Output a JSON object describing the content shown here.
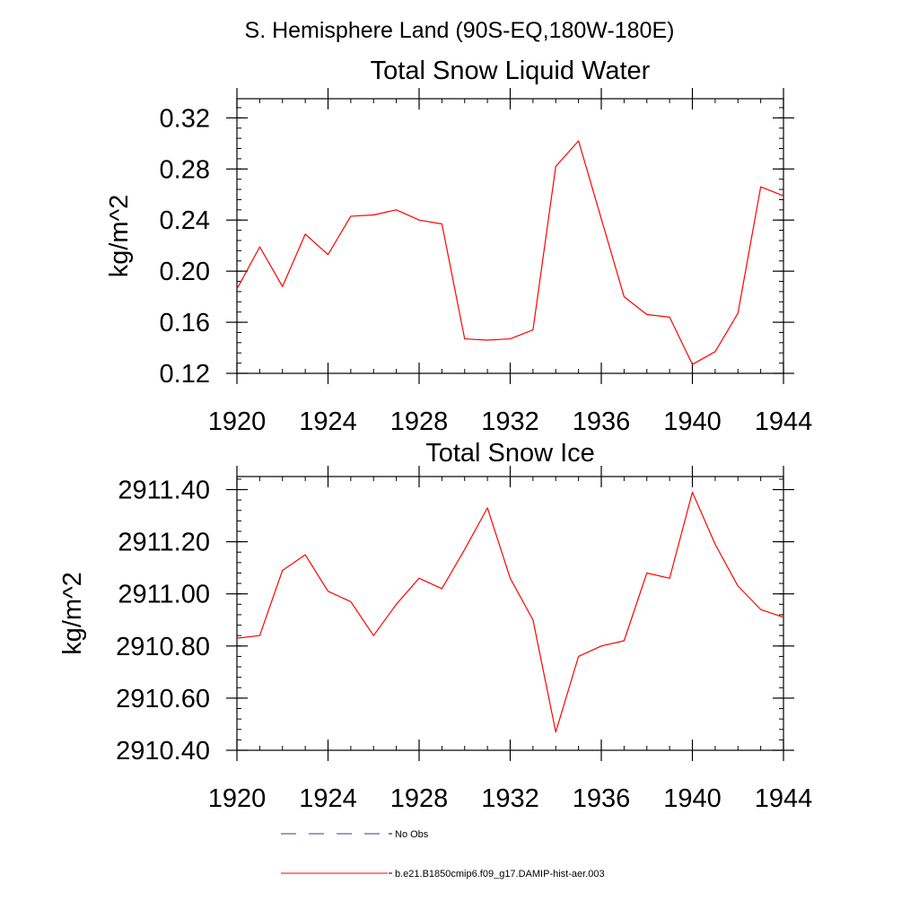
{
  "suptitle": "S. Hemisphere Land (90S-EQ,180W-180E)",
  "legend": {
    "placement": "bottom",
    "entries": [
      {
        "label": "No Obs",
        "style": "dashed",
        "color": "#3a3a8c"
      },
      {
        "label": "b.e21.B1850cmip6.f09_g17.DAMIP-hist-aer.003",
        "style": "solid",
        "color": "#ff0000"
      }
    ]
  },
  "chart_data": [
    {
      "type": "line",
      "title": "Total Snow Liquid Water",
      "xlabel": "",
      "ylabel": "kg/m^2",
      "xlim": [
        1920,
        1944
      ],
      "ylim": [
        0.12,
        0.335
      ],
      "xticks": [
        1920,
        1924,
        1928,
        1932,
        1936,
        1940,
        1944
      ],
      "xtick_labels": [
        "1920",
        "1924",
        "1928",
        "1932",
        "1936",
        "1940",
        "1944"
      ],
      "yticks": [
        0.12,
        0.16,
        0.2,
        0.24,
        0.28,
        0.32
      ],
      "ytick_labels": [
        "0.12",
        "0.16",
        "0.20",
        "0.24",
        "0.28",
        "0.32"
      ],
      "grid": false,
      "series": [
        {
          "color": "#ff0000",
          "x": [
            1920,
            1921,
            1922,
            1923,
            1924,
            1925,
            1926,
            1927,
            1928,
            1929,
            1930,
            1931,
            1932,
            1933,
            1934,
            1935,
            1936,
            1937,
            1938,
            1939,
            1940,
            1941,
            1942,
            1943,
            1944
          ],
          "values": [
            0.186,
            0.219,
            0.188,
            0.229,
            0.213,
            0.243,
            0.244,
            0.248,
            0.24,
            0.237,
            0.147,
            0.146,
            0.147,
            0.154,
            0.282,
            0.302,
            0.241,
            0.18,
            0.166,
            0.164,
            0.127,
            0.137,
            0.167,
            0.266,
            0.259
          ]
        }
      ]
    },
    {
      "type": "line",
      "title": "Total Snow Ice",
      "xlabel": "",
      "ylabel": "kg/m^2",
      "xlim": [
        1920,
        1944
      ],
      "ylim": [
        2910.4,
        2911.45
      ],
      "xticks": [
        1920,
        1924,
        1928,
        1932,
        1936,
        1940,
        1944
      ],
      "xtick_labels": [
        "1920",
        "1924",
        "1928",
        "1932",
        "1936",
        "1940",
        "1944"
      ],
      "yticks": [
        2910.4,
        2910.6,
        2910.8,
        2911.0,
        2911.2,
        2911.4
      ],
      "ytick_labels": [
        "2910.40",
        "2910.60",
        "2910.80",
        "2911.00",
        "2911.20",
        "2911.40"
      ],
      "grid": false,
      "series": [
        {
          "color": "#ff0000",
          "x": [
            1920,
            1921,
            1922,
            1923,
            1924,
            1925,
            1926,
            1927,
            1928,
            1929,
            1930,
            1931,
            1932,
            1933,
            1934,
            1935,
            1936,
            1937,
            1938,
            1939,
            1940,
            1941,
            1942,
            1943,
            1944
          ],
          "values": [
            2910.83,
            2910.84,
            2911.09,
            2911.15,
            2911.01,
            2910.97,
            2910.84,
            2910.96,
            2911.06,
            2911.02,
            2911.17,
            2911.33,
            2911.06,
            2910.9,
            2910.47,
            2910.76,
            2910.8,
            2910.82,
            2911.08,
            2911.06,
            2911.39,
            2911.19,
            2911.03,
            2910.94,
            2910.91
          ]
        }
      ]
    }
  ]
}
